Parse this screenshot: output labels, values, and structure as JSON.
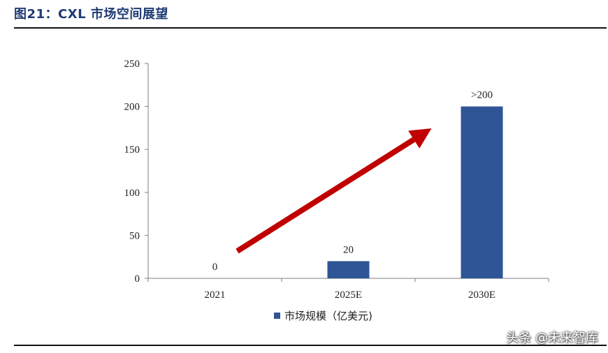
{
  "figure": {
    "title": "图21：CXL 市场空间展望"
  },
  "watermark": "头条 @未来智库",
  "chart_data": {
    "type": "bar",
    "categories": [
      "2021",
      "2025E",
      "2030E"
    ],
    "values": [
      0,
      20,
      200
    ],
    "data_labels": [
      "0",
      "20",
      ">200"
    ],
    "series": [
      {
        "name": "市场规模（亿美元)",
        "values": [
          0,
          20,
          200
        ]
      }
    ],
    "ylim": [
      0,
      250
    ],
    "yticks": [
      0,
      50,
      100,
      150,
      200,
      250
    ],
    "legend": "bottom",
    "grid": false,
    "bar_color": "#2f5597",
    "arrow_color": "#c00000",
    "annotation": "red trend arrow rising from 2021 to 2030E"
  }
}
